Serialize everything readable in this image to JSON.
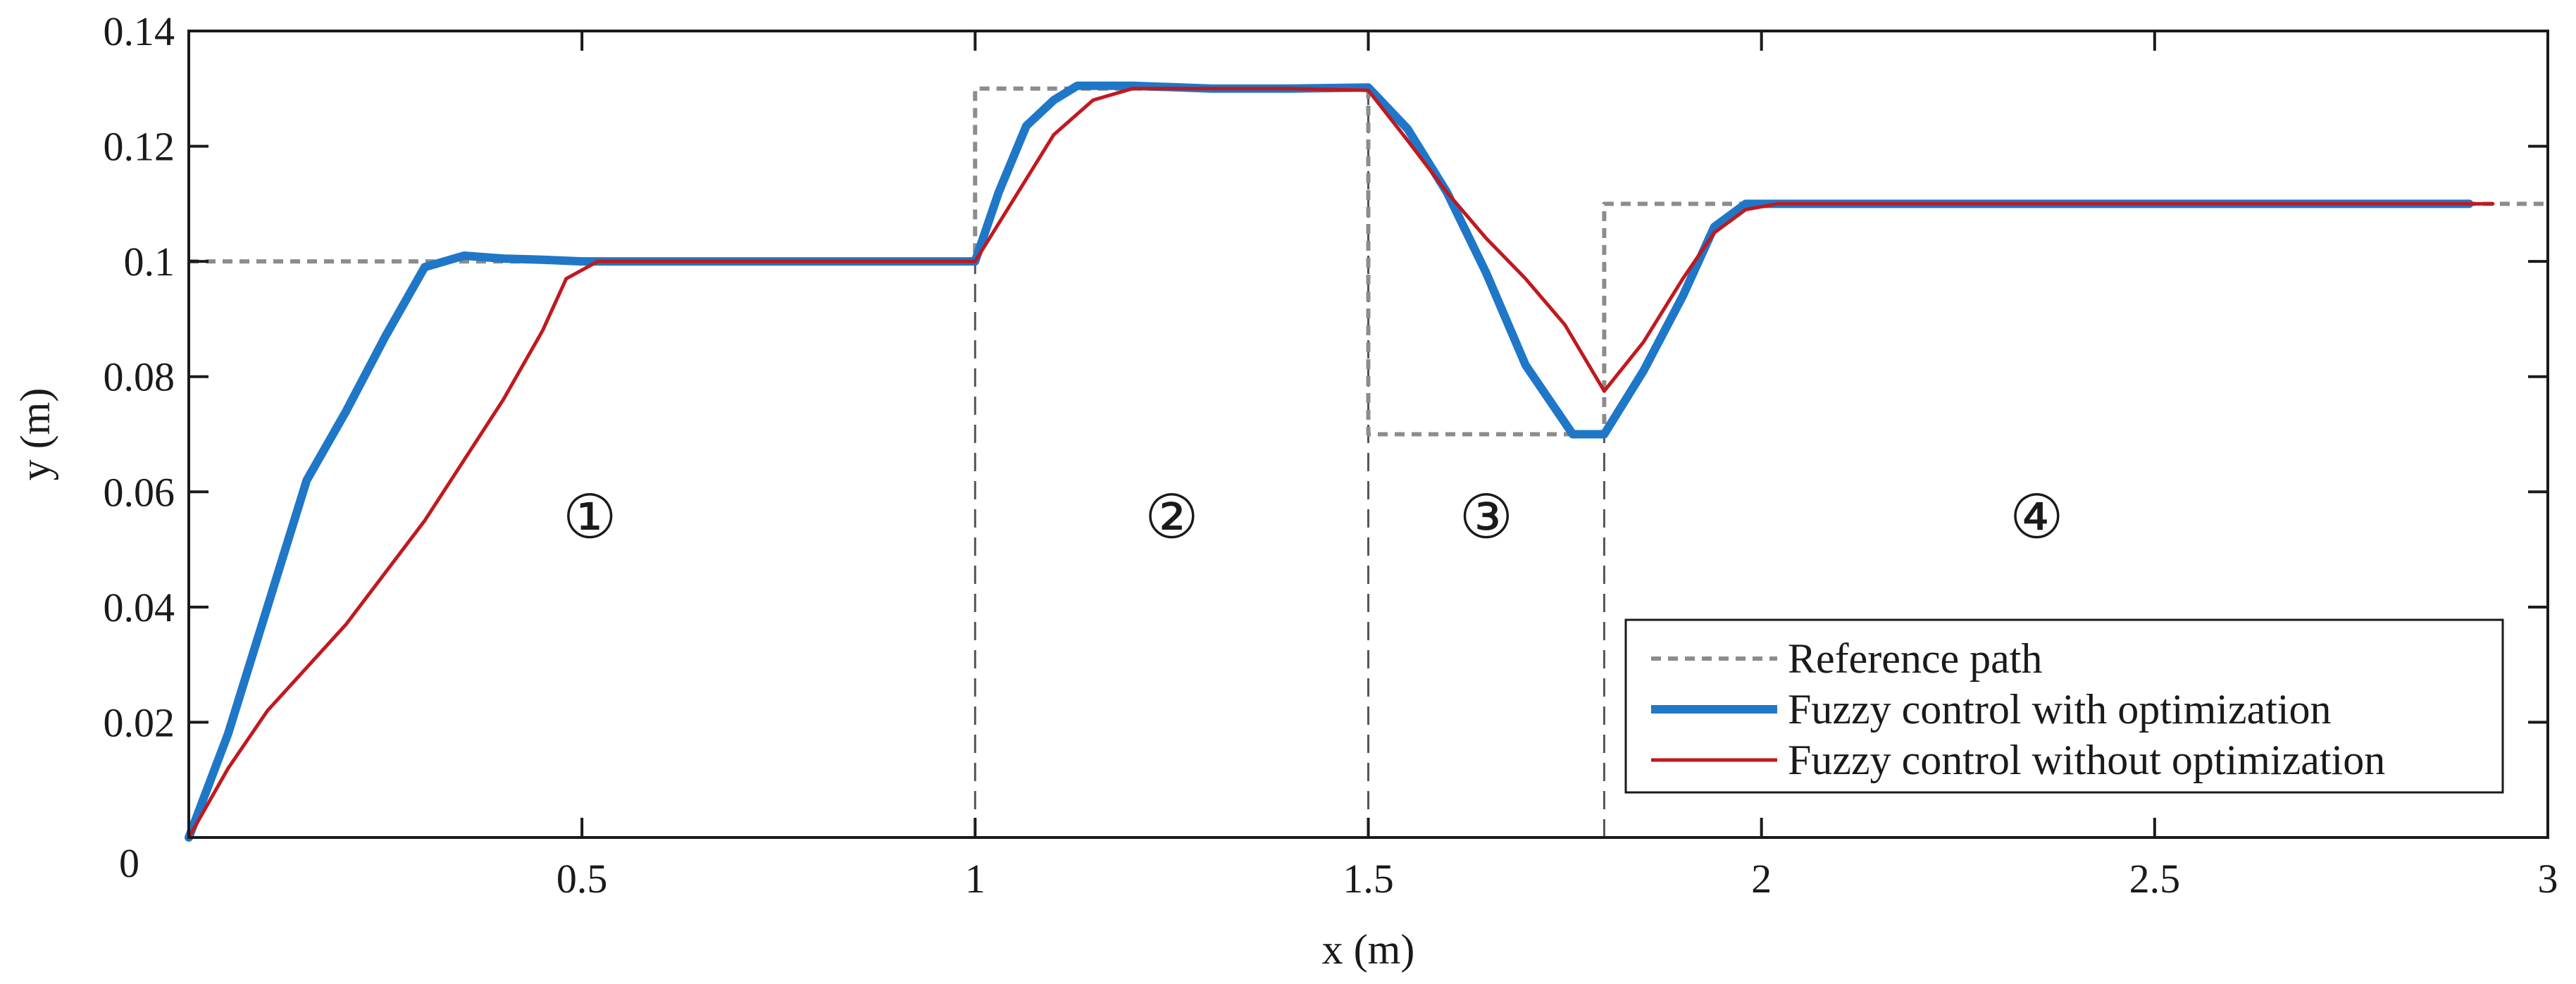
{
  "chart_data": {
    "type": "line",
    "title": "",
    "xlabel": "x (m)",
    "ylabel": "y (m)",
    "xlim": [
      0,
      3
    ],
    "ylim": [
      0,
      0.14
    ],
    "x_ticks": [
      {
        "value": 0.5,
        "label": "0.5"
      },
      {
        "value": 1,
        "label": "1"
      },
      {
        "value": 1.5,
        "label": "1.5"
      },
      {
        "value": 2,
        "label": "2"
      },
      {
        "value": 2.5,
        "label": "2.5"
      },
      {
        "value": 3,
        "label": "3"
      }
    ],
    "y_ticks": [
      {
        "value": 0.02,
        "label": "0.02"
      },
      {
        "value": 0.04,
        "label": "0.04"
      },
      {
        "value": 0.06,
        "label": "0.06"
      },
      {
        "value": 0.08,
        "label": "0.08"
      },
      {
        "value": 0.1,
        "label": "0.1"
      },
      {
        "value": 0.12,
        "label": "0.12"
      },
      {
        "value": 0.14,
        "label": "0.14"
      }
    ],
    "origin_label": "0",
    "grid": false,
    "legend_position": "bottom-right",
    "series": [
      {
        "name": "Reference path",
        "color": "#8c8c8c",
        "style": "dotted",
        "points": [
          [
            0,
            0.1
          ],
          [
            1.0,
            0.1
          ],
          [
            1.0,
            0.13
          ],
          [
            1.5,
            0.13
          ],
          [
            1.5,
            0.07
          ],
          [
            1.8,
            0.07
          ],
          [
            1.8,
            0.11
          ],
          [
            3.0,
            0.11
          ]
        ]
      },
      {
        "name": "Fuzzy control with optimization",
        "color": "#1f77c8",
        "style": "solid-thick",
        "points": [
          [
            0,
            0
          ],
          [
            0.05,
            0.018
          ],
          [
            0.1,
            0.04
          ],
          [
            0.15,
            0.062
          ],
          [
            0.2,
            0.074
          ],
          [
            0.25,
            0.087
          ],
          [
            0.3,
            0.099
          ],
          [
            0.35,
            0.101
          ],
          [
            0.4,
            0.1005
          ],
          [
            0.45,
            0.1003
          ],
          [
            0.5,
            0.1
          ],
          [
            0.6,
            0.1
          ],
          [
            0.8,
            0.1
          ],
          [
            1.0,
            0.1
          ],
          [
            1.03,
            0.112
          ],
          [
            1.065,
            0.1235
          ],
          [
            1.1,
            0.128
          ],
          [
            1.13,
            0.1305
          ],
          [
            1.2,
            0.1305
          ],
          [
            1.3,
            0.13
          ],
          [
            1.4,
            0.13
          ],
          [
            1.5,
            0.1302
          ],
          [
            1.55,
            0.123
          ],
          [
            1.6,
            0.112
          ],
          [
            1.65,
            0.098
          ],
          [
            1.7,
            0.082
          ],
          [
            1.76,
            0.07
          ],
          [
            1.8,
            0.07
          ],
          [
            1.85,
            0.081
          ],
          [
            1.9,
            0.094
          ],
          [
            1.94,
            0.106
          ],
          [
            1.98,
            0.11
          ],
          [
            2.1,
            0.11
          ],
          [
            2.5,
            0.11
          ],
          [
            2.9,
            0.11
          ]
        ]
      },
      {
        "name": "Fuzzy control without optimization",
        "color": "#c0191e",
        "style": "solid",
        "points": [
          [
            0,
            0
          ],
          [
            0.05,
            0.012
          ],
          [
            0.1,
            0.022
          ],
          [
            0.2,
            0.037
          ],
          [
            0.3,
            0.055
          ],
          [
            0.4,
            0.076
          ],
          [
            0.45,
            0.088
          ],
          [
            0.48,
            0.097
          ],
          [
            0.52,
            0.1
          ],
          [
            0.6,
            0.1
          ],
          [
            0.8,
            0.1
          ],
          [
            1.0,
            0.1
          ],
          [
            1.05,
            0.111
          ],
          [
            1.1,
            0.122
          ],
          [
            1.15,
            0.128
          ],
          [
            1.2,
            0.13
          ],
          [
            1.3,
            0.13
          ],
          [
            1.4,
            0.13
          ],
          [
            1.5,
            0.1297
          ],
          [
            1.55,
            0.121
          ],
          [
            1.6,
            0.112
          ],
          [
            1.65,
            0.104
          ],
          [
            1.7,
            0.097
          ],
          [
            1.75,
            0.089
          ],
          [
            1.8,
            0.0775
          ],
          [
            1.85,
            0.086
          ],
          [
            1.9,
            0.097
          ],
          [
            1.94,
            0.105
          ],
          [
            1.98,
            0.109
          ],
          [
            2.02,
            0.11
          ],
          [
            2.2,
            0.11
          ],
          [
            2.6,
            0.11
          ],
          [
            2.93,
            0.11
          ]
        ]
      }
    ],
    "region_dividers": [
      {
        "x": 1.0,
        "y_top": 0.1
      },
      {
        "x": 1.5,
        "y_top": 0.13
      },
      {
        "x": 1.8,
        "y_top": 0.07
      }
    ],
    "region_labels": [
      {
        "text": "①",
        "x": 0.51,
        "y": 0.052
      },
      {
        "text": "②",
        "x": 1.25,
        "y": 0.052
      },
      {
        "text": "③",
        "x": 1.65,
        "y": 0.052
      },
      {
        "text": "④",
        "x": 2.35,
        "y": 0.052
      }
    ]
  }
}
